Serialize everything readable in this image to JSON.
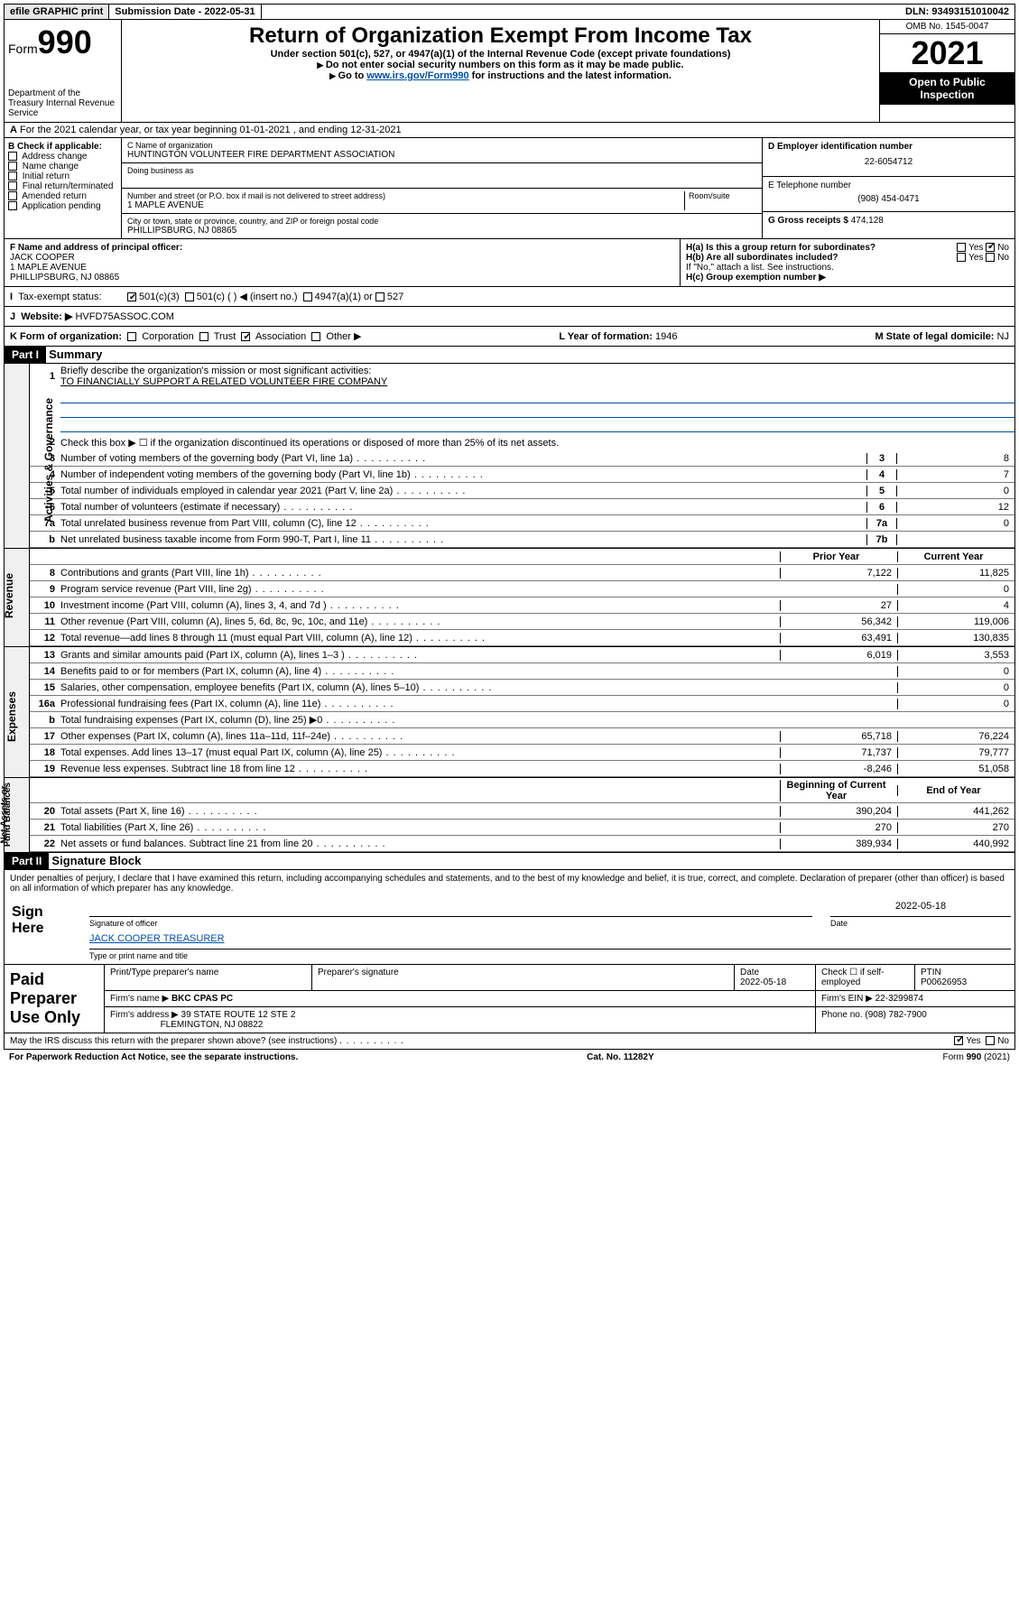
{
  "topbar": {
    "efile": "efile GRAPHIC print",
    "subdate_label": "Submission Date - 2022-05-31",
    "dln": "DLN: 93493151010042"
  },
  "header": {
    "form_label": "Form",
    "form_num": "990",
    "dept": "Department of the Treasury Internal Revenue Service",
    "title": "Return of Organization Exempt From Income Tax",
    "sub1": "Under section 501(c), 527, or 4947(a)(1) of the Internal Revenue Code (except private foundations)",
    "sub2": "Do not enter social security numbers on this form as it may be made public.",
    "sub3_pre": "Go to ",
    "sub3_link": "www.irs.gov/Form990",
    "sub3_post": " for instructions and the latest information.",
    "omb": "OMB No. 1545-0047",
    "year": "2021",
    "open": "Open to Public Inspection"
  },
  "rowA": "For the 2021 calendar year, or tax year beginning 01-01-2021   , and ending 12-31-2021",
  "boxB": {
    "hdr": "B Check if applicable:",
    "opts": [
      "Address change",
      "Name change",
      "Initial return",
      "Final return/terminated",
      "Amended return",
      "Application pending"
    ]
  },
  "boxC": {
    "name_label": "C Name of organization",
    "name": "HUNTINGTON VOLUNTEER FIRE DEPARTMENT ASSOCIATION",
    "dba_label": "Doing business as",
    "street_label": "Number and street (or P.O. box if mail is not delivered to street address)",
    "room_label": "Room/suite",
    "street": "1 MAPLE AVENUE",
    "city_label": "City or town, state or province, country, and ZIP or foreign postal code",
    "city": "PHILLIPSBURG, NJ  08865"
  },
  "boxD": {
    "label": "D Employer identification number",
    "val": "22-6054712"
  },
  "boxE": {
    "label": "E Telephone number",
    "val": "(908) 454-0471"
  },
  "boxG": {
    "label": "G Gross receipts $",
    "val": "474,128"
  },
  "boxF": {
    "label": "F  Name and address of principal officer:",
    "name": "JACK COOPER",
    "addr1": "1 MAPLE AVENUE",
    "addr2": "PHILLIPSBURG, NJ  08865"
  },
  "boxH": {
    "ha": "H(a)  Is this a group return for subordinates?",
    "hb": "H(b)  Are all subordinates included?",
    "hb_note": "If \"No,\" attach a list. See instructions.",
    "hc": "H(c)  Group exemption number ▶",
    "yes": "Yes",
    "no": "No"
  },
  "rowI": {
    "label": "Tax-exempt status:",
    "o1": "501(c)(3)",
    "o2": "501(c) (  ) ◀ (insert no.)",
    "o3": "4947(a)(1) or",
    "o4": "527"
  },
  "rowJ": {
    "label": "Website: ▶",
    "val": "HVFD75ASSOC.COM"
  },
  "rowK": {
    "label": "K Form of organization:",
    "opts": [
      "Corporation",
      "Trust",
      "Association",
      "Other ▶"
    ],
    "l_label": "L Year of formation:",
    "l_val": "1946",
    "m_label": "M State of legal domicile:",
    "m_val": "NJ"
  },
  "part1": {
    "hdr": "Part I",
    "title": "Summary",
    "l1_label": "Briefly describe the organization's mission or most significant activities:",
    "l1_val": "TO FINANCIALLY SUPPORT A RELATED VOLUNTEER FIRE COMPANY",
    "l2": "Check this box ▶ ☐  if the organization discontinued its operations or disposed of more than 25% of its net assets.",
    "rows_gov": [
      {
        "n": "3",
        "t": "Number of voting members of the governing body (Part VI, line 1a)",
        "b": "3",
        "v": "8"
      },
      {
        "n": "4",
        "t": "Number of independent voting members of the governing body (Part VI, line 1b)",
        "b": "4",
        "v": "7"
      },
      {
        "n": "5",
        "t": "Total number of individuals employed in calendar year 2021 (Part V, line 2a)",
        "b": "5",
        "v": "0"
      },
      {
        "n": "6",
        "t": "Total number of volunteers (estimate if necessary)",
        "b": "6",
        "v": "12"
      },
      {
        "n": "7a",
        "t": "Total unrelated business revenue from Part VIII, column (C), line 12",
        "b": "7a",
        "v": "0"
      },
      {
        "n": "b",
        "t": "Net unrelated business taxable income from Form 990-T, Part I, line 11",
        "b": "7b",
        "v": ""
      }
    ],
    "col_prior": "Prior Year",
    "col_curr": "Current Year",
    "rows_rev": [
      {
        "n": "8",
        "t": "Contributions and grants (Part VIII, line 1h)",
        "p": "7,122",
        "c": "11,825"
      },
      {
        "n": "9",
        "t": "Program service revenue (Part VIII, line 2g)",
        "p": "",
        "c": "0"
      },
      {
        "n": "10",
        "t": "Investment income (Part VIII, column (A), lines 3, 4, and 7d )",
        "p": "27",
        "c": "4"
      },
      {
        "n": "11",
        "t": "Other revenue (Part VIII, column (A), lines 5, 6d, 8c, 9c, 10c, and 11e)",
        "p": "56,342",
        "c": "119,006"
      },
      {
        "n": "12",
        "t": "Total revenue—add lines 8 through 11 (must equal Part VIII, column (A), line 12)",
        "p": "63,491",
        "c": "130,835"
      }
    ],
    "rows_exp": [
      {
        "n": "13",
        "t": "Grants and similar amounts paid (Part IX, column (A), lines 1–3 )",
        "p": "6,019",
        "c": "3,553"
      },
      {
        "n": "14",
        "t": "Benefits paid to or for members (Part IX, column (A), line 4)",
        "p": "",
        "c": "0"
      },
      {
        "n": "15",
        "t": "Salaries, other compensation, employee benefits (Part IX, column (A), lines 5–10)",
        "p": "",
        "c": "0"
      },
      {
        "n": "16a",
        "t": "Professional fundraising fees (Part IX, column (A), line 11e)",
        "p": "",
        "c": "0"
      },
      {
        "n": "b",
        "t": "Total fundraising expenses (Part IX, column (D), line 25) ▶0",
        "p": "shade",
        "c": "shade"
      },
      {
        "n": "17",
        "t": "Other expenses (Part IX, column (A), lines 11a–11d, 11f–24e)",
        "p": "65,718",
        "c": "76,224"
      },
      {
        "n": "18",
        "t": "Total expenses. Add lines 13–17 (must equal Part IX, column (A), line 25)",
        "p": "71,737",
        "c": "79,777"
      },
      {
        "n": "19",
        "t": "Revenue less expenses. Subtract line 18 from line 12",
        "p": "-8,246",
        "c": "51,058"
      }
    ],
    "col_beg": "Beginning of Current Year",
    "col_end": "End of Year",
    "rows_net": [
      {
        "n": "20",
        "t": "Total assets (Part X, line 16)",
        "p": "390,204",
        "c": "441,262"
      },
      {
        "n": "21",
        "t": "Total liabilities (Part X, line 26)",
        "p": "270",
        "c": "270"
      },
      {
        "n": "22",
        "t": "Net assets or fund balances. Subtract line 21 from line 20",
        "p": "389,934",
        "c": "440,992"
      }
    ]
  },
  "part2": {
    "hdr": "Part II",
    "title": "Signature Block",
    "decl": "Under penalties of perjury, I declare that I have examined this return, including accompanying schedules and statements, and to the best of my knowledge and belief, it is true, correct, and complete. Declaration of preparer (other than officer) is based on all information of which preparer has any knowledge.",
    "sign": "Sign Here",
    "sig_of": "Signature of officer",
    "date_l": "Date",
    "date_v": "2022-05-18",
    "officer": "JACK COOPER  TREASURER",
    "type_l": "Type or print name and title"
  },
  "prep": {
    "title": "Paid Preparer Use Only",
    "h1": "Print/Type preparer's name",
    "h2": "Preparer's signature",
    "h3": "Date",
    "h3v": "2022-05-18",
    "h4": "Check ☐ if self-employed",
    "h5": "PTIN",
    "h5v": "P00626953",
    "firm_l": "Firm's name   ▶",
    "firm": "BKC CPAS PC",
    "ein_l": "Firm's EIN ▶",
    "ein": "22-3299874",
    "addr_l": "Firm's address ▶",
    "addr1": "39 STATE ROUTE 12 STE 2",
    "addr2": "FLEMINGTON, NJ  08822",
    "phone_l": "Phone no.",
    "phone": "(908) 782-7900"
  },
  "foot": {
    "q": "May the IRS discuss this return with the preparer shown above? (see instructions)",
    "yes": "Yes",
    "no": "No",
    "pra": "For Paperwork Reduction Act Notice, see the separate instructions.",
    "cat": "Cat. No. 11282Y",
    "form": "Form 990 (2021)"
  }
}
